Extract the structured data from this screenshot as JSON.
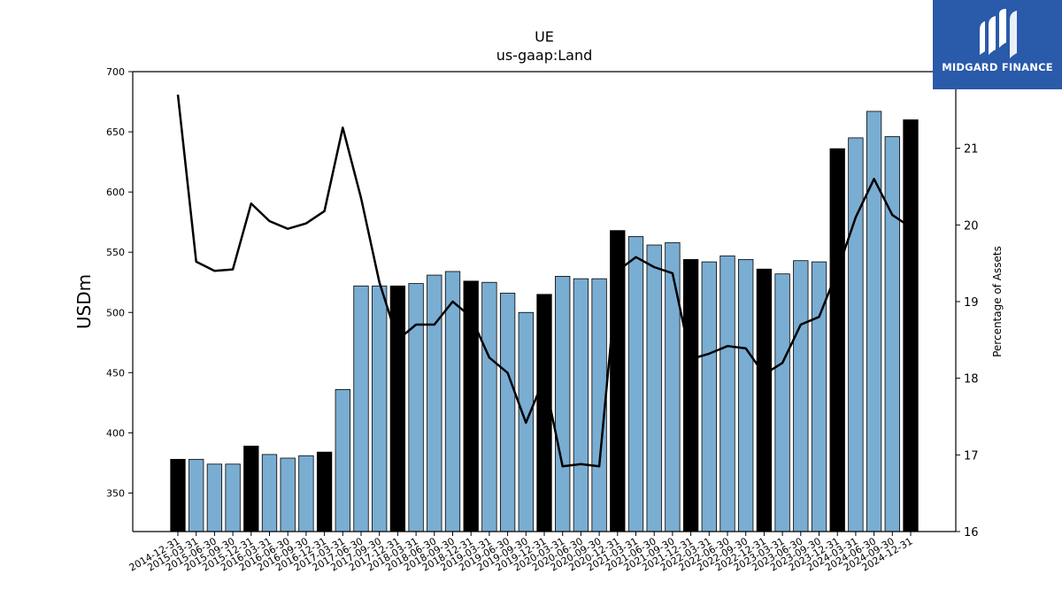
{
  "chart_data": {
    "type": "bar",
    "title": "UE",
    "subtitle": "us-gaap:Land",
    "ylabel": "USDm",
    "y2label": "Percentage of Assets",
    "ylim": [
      318,
      700
    ],
    "y2lim": [
      16,
      22
    ],
    "yticks": [
      350,
      400,
      450,
      500,
      550,
      600,
      650,
      700
    ],
    "y2ticks": [
      16,
      17,
      18,
      19,
      20,
      21
    ],
    "grid": false,
    "colors": {
      "annual_bar": "#000000",
      "quarter_bar": "#7aadd2",
      "line": "#000000"
    },
    "categories": [
      "2014-12-31",
      "2015-03-31",
      "2015-06-30",
      "2015-09-30",
      "2015-12-31",
      "2016-03-31",
      "2016-06-30",
      "2016-09-30",
      "2016-12-31",
      "2017-03-31",
      "2017-06-30",
      "2017-09-30",
      "2017-12-31",
      "2018-03-31",
      "2018-06-30",
      "2018-09-30",
      "2018-12-31",
      "2019-03-31",
      "2019-06-30",
      "2019-09-30",
      "2019-12-31",
      "2020-03-31",
      "2020-06-30",
      "2020-09-30",
      "2020-12-31",
      "2021-03-31",
      "2021-06-30",
      "2021-09-30",
      "2021-12-31",
      "2022-03-31",
      "2022-06-30",
      "2022-09-30",
      "2022-12-31",
      "2023-03-31",
      "2023-06-30",
      "2023-09-30",
      "2023-12-31",
      "2024-03-31",
      "2024-06-30",
      "2024-09-30",
      "2024-12-31"
    ],
    "series": [
      {
        "values": [
          378,
          378,
          374,
          374,
          389,
          382,
          379,
          381,
          384,
          436,
          522,
          522,
          522,
          524,
          531,
          534,
          526,
          525,
          516,
          500,
          515,
          530,
          528,
          528,
          568,
          563,
          556,
          558,
          544,
          542,
          547,
          544,
          536,
          532,
          543,
          542,
          636,
          645,
          667,
          646,
          660
        ],
        "annual": [
          true,
          false,
          false,
          false,
          true,
          false,
          false,
          false,
          true,
          false,
          false,
          false,
          true,
          false,
          false,
          false,
          true,
          false,
          false,
          false,
          true,
          false,
          false,
          false,
          true,
          false,
          false,
          false,
          true,
          false,
          false,
          false,
          true,
          false,
          false,
          false,
          true,
          false,
          false,
          false,
          true
        ]
      },
      {
        "axis": "right",
        "values": [
          21.7,
          19.52,
          19.4,
          19.42,
          20.28,
          20.05,
          19.95,
          20.02,
          20.18,
          21.27,
          20.35,
          19.25,
          18.5,
          18.7,
          18.7,
          19.0,
          18.8,
          18.27,
          18.07,
          17.42,
          18.0,
          16.85,
          16.88,
          16.85,
          19.4,
          19.58,
          19.45,
          19.37,
          18.25,
          18.32,
          18.42,
          18.39,
          18.05,
          18.2,
          18.7,
          18.8,
          19.4,
          20.1,
          20.6,
          20.13,
          19.97
        ]
      }
    ]
  },
  "logo": {
    "text": "MIDGARD FINANCE"
  }
}
